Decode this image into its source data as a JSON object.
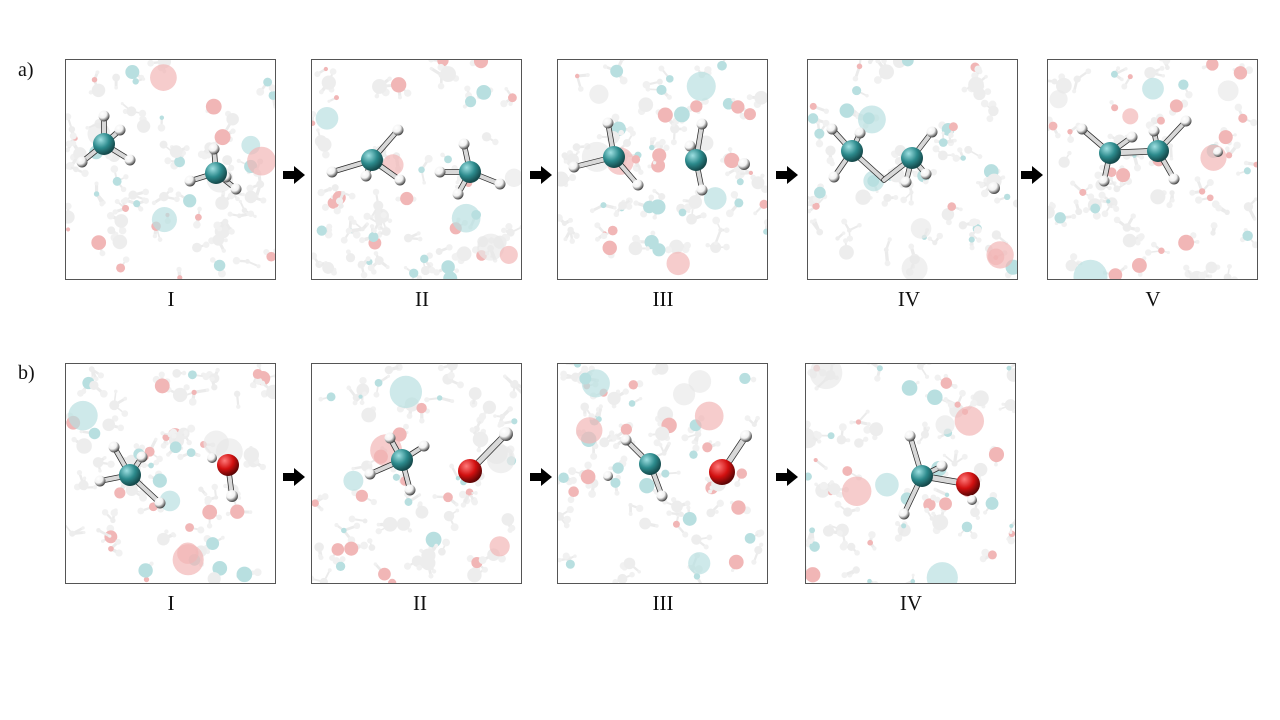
{
  "rows": [
    {
      "label": "a)",
      "panels": [
        "I",
        "II",
        "III",
        "IV",
        "V"
      ]
    },
    {
      "label": "b)",
      "panels": [
        "I",
        "II",
        "III",
        "IV"
      ]
    }
  ],
  "colors": {
    "carbon": "#2c8a8c",
    "oxygen": "#d21010",
    "hydrogen": "#f2f2f2",
    "bg_carbon": "#7fc6c7",
    "bg_oxygen": "#e77b7b",
    "bg_hydrogen": "#e0e0e0",
    "arrow": "#000000"
  }
}
